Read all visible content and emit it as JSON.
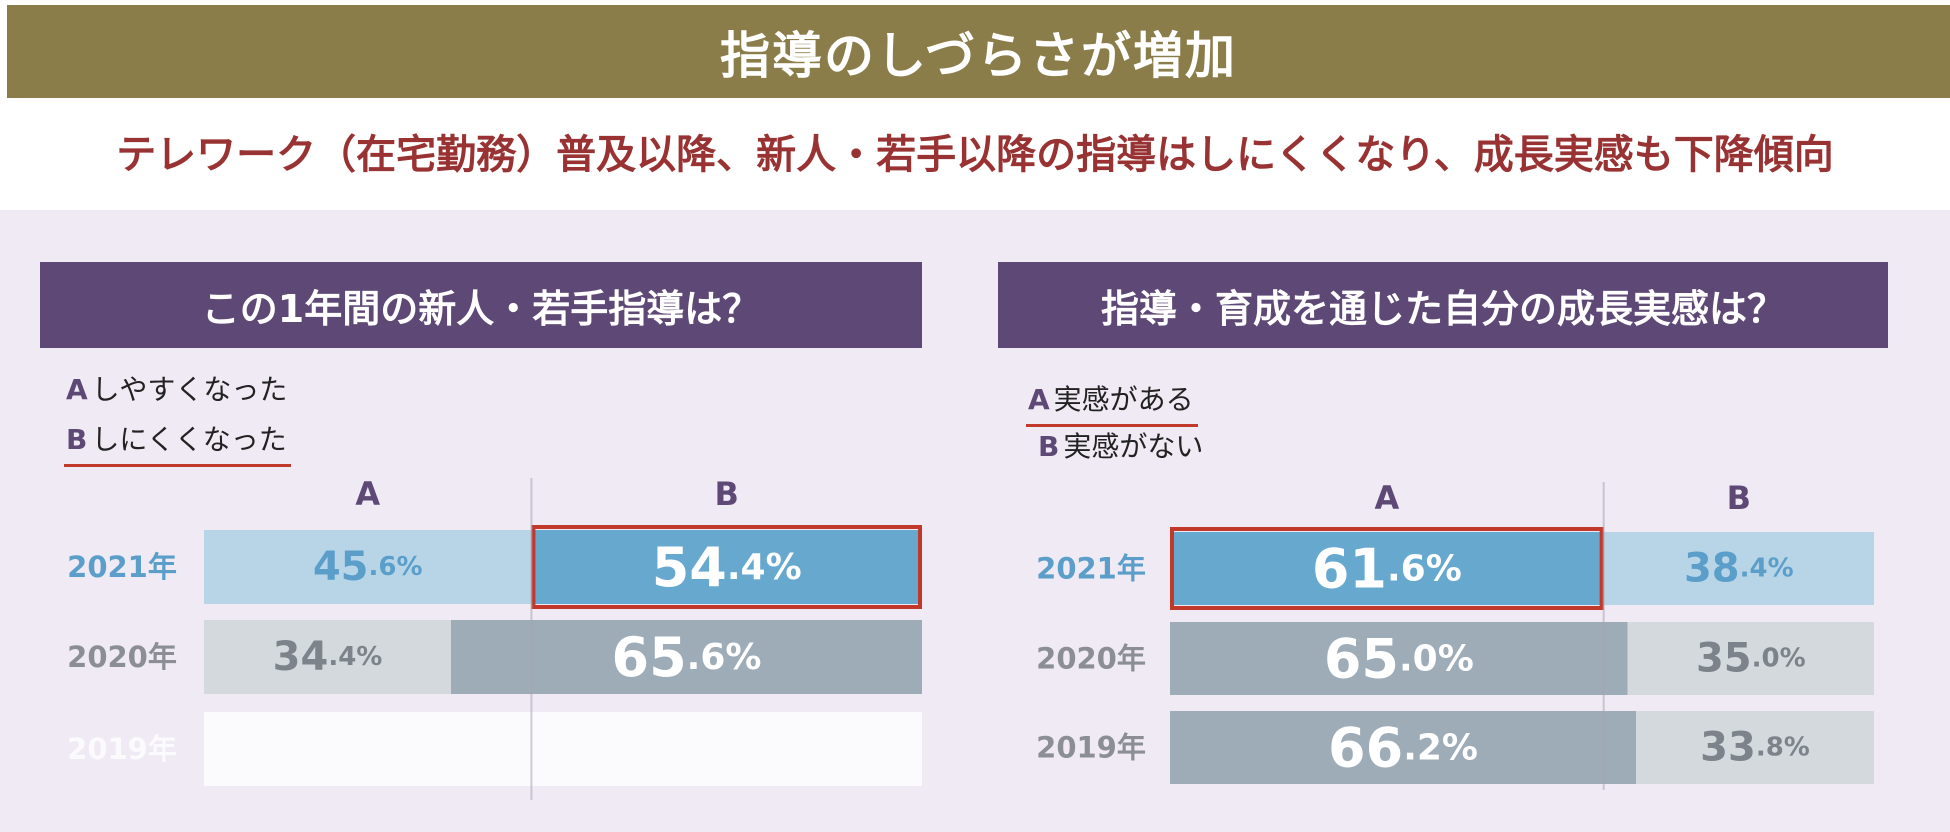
{
  "header": {
    "title": "指導のしづらさが増加",
    "subtitle": "テレワーク（在宅勤務）普及以降、新人・若手以降の指導はしにくくなり、成長実感も下降傾向"
  },
  "colors": {
    "banner": "#8a7d4a",
    "subtitle": "#993333",
    "panel_header": "#5e4876",
    "panel_bg": "#efeaf4",
    "highlight_outline": "#c0392b",
    "year_2021": "#5a9ec9",
    "year_other": "#8b8f95"
  },
  "chart_data": [
    {
      "type": "bar",
      "stacked": true,
      "orientation": "horizontal",
      "title": "この1年間の新人・若手指導は？",
      "legend": [
        {
          "key": "A",
          "label": "しやすくなった",
          "highlighted": false
        },
        {
          "key": "B",
          "label": "しにくくなった",
          "highlighted": true
        }
      ],
      "column_labels": [
        "A",
        "B"
      ],
      "rows": [
        {
          "year": "2021年",
          "a": 45.6,
          "b": 54.4,
          "a_int": "45",
          "a_dec": ".6%",
          "b_int": "54",
          "b_dec": ".4%",
          "highlight": "b",
          "style": "blue",
          "visible": true
        },
        {
          "year": "2020年",
          "a": 34.4,
          "b": 65.6,
          "a_int": "34",
          "a_dec": ".4%",
          "b_int": "65",
          "b_dec": ".6%",
          "highlight": null,
          "style": "gray",
          "visible": true
        },
        {
          "year": "2019年",
          "a": null,
          "b": null,
          "highlight": null,
          "style": "faded",
          "visible": false
        }
      ],
      "xlim": [
        0,
        100
      ]
    },
    {
      "type": "bar",
      "stacked": true,
      "orientation": "horizontal",
      "title": "指導・育成を通じた自分の成長実感は？",
      "legend": [
        {
          "key": "A",
          "label": "実感がある",
          "highlighted": true
        },
        {
          "key": "B",
          "label": "実感がない",
          "highlighted": false
        }
      ],
      "column_labels": [
        "A",
        "B"
      ],
      "rows": [
        {
          "year": "2021年",
          "a": 61.6,
          "b": 38.4,
          "a_int": "61",
          "a_dec": ".6%",
          "b_int": "38",
          "b_dec": ".4%",
          "highlight": "a",
          "style": "blue",
          "visible": true
        },
        {
          "year": "2020年",
          "a": 65.0,
          "b": 35.0,
          "a_int": "65",
          "a_dec": ".0%",
          "b_int": "35",
          "b_dec": ".0%",
          "highlight": null,
          "style": "gray",
          "visible": true
        },
        {
          "year": "2019年",
          "a": 66.2,
          "b": 33.8,
          "a_int": "66",
          "a_dec": ".2%",
          "b_int": "33",
          "b_dec": ".8%",
          "highlight": null,
          "style": "gray",
          "visible": true
        }
      ],
      "xlim": [
        0,
        100
      ]
    }
  ]
}
